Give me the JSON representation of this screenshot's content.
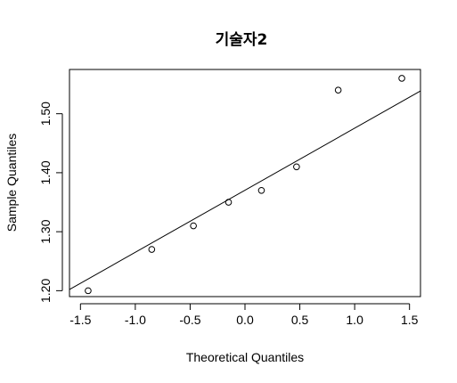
{
  "chart_data": {
    "type": "scatter",
    "title": "기술자2",
    "xlabel": "Theoretical Quantiles",
    "ylabel": "Sample Quantiles",
    "xlim": [
      -1.6,
      1.6
    ],
    "ylim": [
      1.19,
      1.575
    ],
    "x_ticks": [
      -1.5,
      -1.0,
      -0.5,
      0.0,
      0.5,
      1.0,
      1.5
    ],
    "x_tick_labels": [
      "-1.5",
      "-1.0",
      "-0.5",
      "0.0",
      "0.5",
      "1.0",
      "1.5"
    ],
    "y_ticks": [
      1.2,
      1.3,
      1.4,
      1.5
    ],
    "y_tick_labels": [
      "1.20",
      "1.30",
      "1.40",
      "1.50"
    ],
    "points": [
      {
        "x": -1.43,
        "y": 1.2
      },
      {
        "x": -0.85,
        "y": 1.27
      },
      {
        "x": -0.47,
        "y": 1.31
      },
      {
        "x": -0.15,
        "y": 1.35
      },
      {
        "x": 0.15,
        "y": 1.37
      },
      {
        "x": 0.47,
        "y": 1.41
      },
      {
        "x": 0.85,
        "y": 1.54
      },
      {
        "x": 1.43,
        "y": 1.56
      }
    ],
    "reference_line": {
      "intercept": 1.3703,
      "slope": 0.1052
    },
    "grid": false
  }
}
